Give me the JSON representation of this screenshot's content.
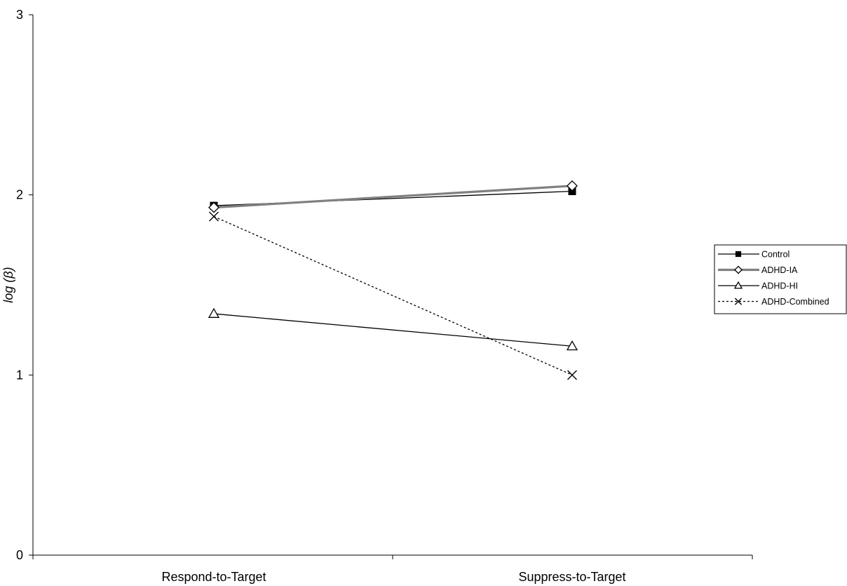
{
  "chart_data": {
    "type": "line",
    "categories": [
      "Respond-to-Target",
      "Suppress-to-Target"
    ],
    "ylabel": "log (β)",
    "xlabel": "",
    "ylim": [
      0,
      3
    ],
    "yticks": [
      "0",
      "1",
      "2",
      "3"
    ],
    "grid": false,
    "legend": "right",
    "series": [
      {
        "name": "Control",
        "values": [
          1.94,
          2.02
        ],
        "color": "#000000",
        "marker": "filled-square",
        "line": "solid"
      },
      {
        "name": "ADHD-IA",
        "values": [
          1.93,
          2.05
        ],
        "color": "#808080",
        "marker": "open-diamond",
        "line": "solid-thick"
      },
      {
        "name": "ADHD-HI",
        "values": [
          1.34,
          1.16
        ],
        "color": "#000000",
        "marker": "open-triangle",
        "line": "solid"
      },
      {
        "name": "ADHD-Combined",
        "values": [
          1.88,
          1.0
        ],
        "color": "#000000",
        "marker": "x",
        "line": "dotted"
      }
    ]
  }
}
